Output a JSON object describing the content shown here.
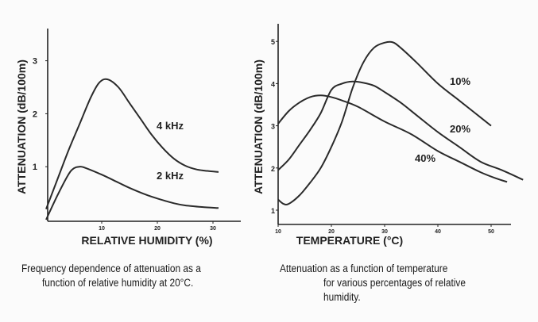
{
  "chart_data": [
    {
      "type": "line",
      "title": "",
      "xlabel": "RELATIVE HUMIDITY (%)",
      "ylabel": "ATTENUATION (dB/100m)",
      "xlim": [
        0,
        35
      ],
      "ylim": [
        0,
        3.6
      ],
      "xticks": [
        10,
        20,
        30
      ],
      "yticks": [
        1,
        2,
        3
      ],
      "grid": false,
      "series": [
        {
          "name": "4 kHz",
          "x": [
            0,
            2,
            4,
            6,
            8,
            9.5,
            11,
            13,
            15,
            17,
            19,
            21,
            23,
            25,
            27,
            29,
            31
          ],
          "y": [
            0.2,
            0.75,
            1.3,
            1.8,
            2.3,
            2.58,
            2.65,
            2.5,
            2.2,
            1.9,
            1.6,
            1.35,
            1.15,
            1.02,
            0.95,
            0.92,
            0.9
          ]
        },
        {
          "name": "2 kHz",
          "x": [
            0,
            2,
            4,
            5,
            6,
            7,
            10,
            13,
            15,
            18,
            20,
            23,
            25,
            28,
            31
          ],
          "y": [
            0,
            0.45,
            0.85,
            0.97,
            1.0,
            0.98,
            0.85,
            0.7,
            0.6,
            0.47,
            0.4,
            0.31,
            0.27,
            0.24,
            0.22
          ]
        }
      ],
      "annotations": [
        "4 kHz",
        "2 kHz"
      ],
      "caption": [
        "Frequency dependence of attenuation as a",
        "function of relative humidity at 20°C."
      ]
    },
    {
      "type": "line",
      "title": "",
      "xlabel": "TEMPERATURE (°C)",
      "ylabel": "ATTENUATION (dB/100m)",
      "xlim": [
        10,
        58
      ],
      "ylim": [
        0.65,
        5.6
      ],
      "xticks": [
        10,
        20,
        30,
        40,
        50
      ],
      "yticks": [
        1,
        2,
        3,
        4,
        5
      ],
      "grid": false,
      "series": [
        {
          "name": "10%",
          "x": [
            10,
            11,
            12,
            14,
            16,
            18,
            20,
            22,
            24,
            26,
            28,
            30,
            31.5,
            33,
            36,
            40,
            44,
            47,
            50
          ],
          "y": [
            1.25,
            1.15,
            1.15,
            1.35,
            1.65,
            2.0,
            2.5,
            3.1,
            3.9,
            4.5,
            4.85,
            4.97,
            4.98,
            4.85,
            4.5,
            4.0,
            3.6,
            3.3,
            3.0
          ]
        },
        {
          "name": "20%",
          "x": [
            10,
            12,
            14,
            16,
            18,
            20,
            22,
            24,
            26,
            28,
            30,
            33,
            36,
            40,
            44,
            48,
            52,
            56
          ],
          "y": [
            1.95,
            2.2,
            2.55,
            2.9,
            3.3,
            3.85,
            4.0,
            4.05,
            4.02,
            3.95,
            3.8,
            3.55,
            3.25,
            2.85,
            2.5,
            2.15,
            1.95,
            1.72
          ]
        },
        {
          "name": "40%",
          "x": [
            10,
            12,
            14,
            16,
            18,
            20,
            22,
            25,
            30,
            35,
            40,
            44,
            48,
            51,
            53
          ],
          "y": [
            3.05,
            3.35,
            3.55,
            3.68,
            3.72,
            3.68,
            3.6,
            3.45,
            3.1,
            2.8,
            2.4,
            2.15,
            1.9,
            1.75,
            1.67
          ]
        }
      ],
      "annotations": [
        "10%",
        "20%",
        "40%"
      ],
      "caption": [
        "Attenuation as a function of temperature",
        "for various percentages of relative",
        "humidity."
      ]
    }
  ]
}
